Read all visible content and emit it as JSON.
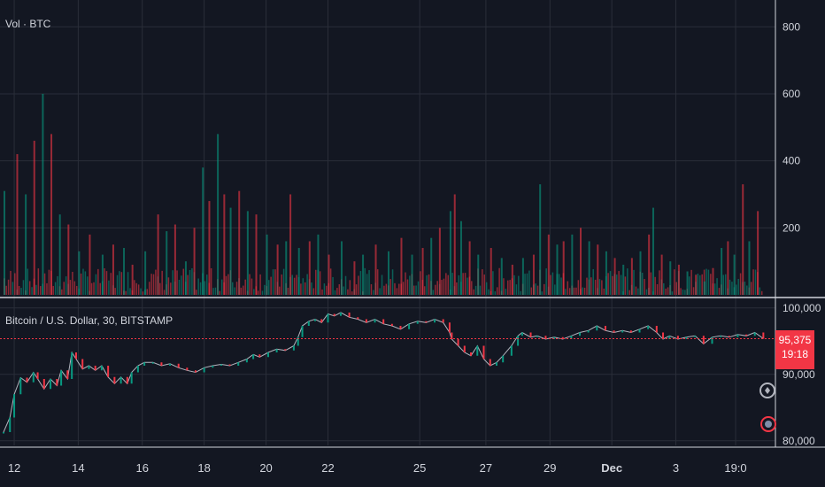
{
  "volume_legend": "Vol · BTC",
  "price_legend": "Bitcoin / U.S. Dollar, 30, BITSTAMP",
  "last_price": "95,375",
  "countdown": "19:18",
  "colors": {
    "background": "#131722",
    "grid": "#2a2e39",
    "up": "#089981",
    "down": "#f23645",
    "line": "#b2b5be",
    "text": "#d1d4dc"
  },
  "icons": [
    "add-alert-icon",
    "flag-icon"
  ],
  "chart_data": [
    {
      "type": "bar",
      "title": "Vol · BTC",
      "y_ticks": [
        200,
        400,
        600,
        800
      ],
      "ylim": [
        0,
        880
      ],
      "grid": true,
      "spikes": [
        {
          "x": 0.0,
          "v": 310
        },
        {
          "x": 0.6,
          "v": 420
        },
        {
          "x": 1.0,
          "v": 300
        },
        {
          "x": 1.4,
          "v": 460
        },
        {
          "x": 1.8,
          "v": 600
        },
        {
          "x": 2.2,
          "v": 480
        },
        {
          "x": 2.6,
          "v": 240
        },
        {
          "x": 3.0,
          "v": 210
        },
        {
          "x": 3.5,
          "v": 130
        },
        {
          "x": 4.0,
          "v": 180
        },
        {
          "x": 4.6,
          "v": 120
        },
        {
          "x": 5.1,
          "v": 150
        },
        {
          "x": 5.6,
          "v": 140
        },
        {
          "x": 6.0,
          "v": 90
        },
        {
          "x": 6.6,
          "v": 130
        },
        {
          "x": 7.2,
          "v": 240
        },
        {
          "x": 7.6,
          "v": 190
        },
        {
          "x": 8.0,
          "v": 210
        },
        {
          "x": 8.5,
          "v": 100
        },
        {
          "x": 8.9,
          "v": 200
        },
        {
          "x": 9.3,
          "v": 380
        },
        {
          "x": 9.6,
          "v": 280
        },
        {
          "x": 10.0,
          "v": 480
        },
        {
          "x": 10.3,
          "v": 300
        },
        {
          "x": 10.6,
          "v": 260
        },
        {
          "x": 11.0,
          "v": 310
        },
        {
          "x": 11.4,
          "v": 250
        },
        {
          "x": 11.8,
          "v": 240
        },
        {
          "x": 12.3,
          "v": 180
        },
        {
          "x": 12.8,
          "v": 150
        },
        {
          "x": 13.2,
          "v": 160
        },
        {
          "x": 13.4,
          "v": 300
        },
        {
          "x": 13.8,
          "v": 140
        },
        {
          "x": 14.3,
          "v": 160
        },
        {
          "x": 14.7,
          "v": 180
        },
        {
          "x": 15.2,
          "v": 120
        },
        {
          "x": 15.8,
          "v": 160
        },
        {
          "x": 16.4,
          "v": 100
        },
        {
          "x": 16.8,
          "v": 120
        },
        {
          "x": 17.4,
          "v": 150
        },
        {
          "x": 18.0,
          "v": 130
        },
        {
          "x": 18.6,
          "v": 170
        },
        {
          "x": 19.1,
          "v": 120
        },
        {
          "x": 19.6,
          "v": 140
        },
        {
          "x": 20.0,
          "v": 170
        },
        {
          "x": 20.4,
          "v": 200
        },
        {
          "x": 20.9,
          "v": 250
        },
        {
          "x": 21.1,
          "v": 300
        },
        {
          "x": 21.4,
          "v": 220
        },
        {
          "x": 21.8,
          "v": 160
        },
        {
          "x": 22.2,
          "v": 120
        },
        {
          "x": 22.8,
          "v": 140
        },
        {
          "x": 23.3,
          "v": 110
        },
        {
          "x": 23.8,
          "v": 90
        },
        {
          "x": 24.3,
          "v": 110
        },
        {
          "x": 24.8,
          "v": 120
        },
        {
          "x": 25.1,
          "v": 330
        },
        {
          "x": 25.5,
          "v": 180
        },
        {
          "x": 25.9,
          "v": 150
        },
        {
          "x": 26.2,
          "v": 160
        },
        {
          "x": 26.6,
          "v": 180
        },
        {
          "x": 27.0,
          "v": 200
        },
        {
          "x": 27.4,
          "v": 160
        },
        {
          "x": 27.8,
          "v": 150
        },
        {
          "x": 28.2,
          "v": 130
        },
        {
          "x": 28.6,
          "v": 110
        },
        {
          "x": 29.0,
          "v": 90
        },
        {
          "x": 29.4,
          "v": 110
        },
        {
          "x": 29.8,
          "v": 130
        },
        {
          "x": 30.2,
          "v": 180
        },
        {
          "x": 30.4,
          "v": 260
        },
        {
          "x": 30.8,
          "v": 120
        },
        {
          "x": 31.2,
          "v": 100
        },
        {
          "x": 31.6,
          "v": 90
        },
        {
          "x": 32.0,
          "v": 70
        },
        {
          "x": 32.4,
          "v": 60
        },
        {
          "x": 32.8,
          "v": 40
        },
        {
          "x": 33.2,
          "v": 80
        },
        {
          "x": 33.6,
          "v": 140
        },
        {
          "x": 33.9,
          "v": 160
        },
        {
          "x": 34.2,
          "v": 120
        },
        {
          "x": 34.6,
          "v": 330
        },
        {
          "x": 34.9,
          "v": 160
        },
        {
          "x": 35.3,
          "v": 250
        }
      ]
    },
    {
      "type": "line",
      "title": "Bitcoin / U.S. Dollar, 30, BITSTAMP",
      "x_ticks": [
        "12",
        "14",
        "16",
        "18",
        "20",
        "22",
        "25",
        "27",
        "29",
        "Dec",
        "3",
        "19:0"
      ],
      "y_ticks": [
        80000,
        90000,
        95375,
        100000
      ],
      "ylim": [
        79300,
        101300
      ],
      "grid": true,
      "last": 95375,
      "points": [
        {
          "x": 0.0,
          "y": 81300
        },
        {
          "x": 0.3,
          "y": 83500
        },
        {
          "x": 0.5,
          "y": 87000
        },
        {
          "x": 0.8,
          "y": 89500
        },
        {
          "x": 1.1,
          "y": 88800
        },
        {
          "x": 1.4,
          "y": 90300
        },
        {
          "x": 1.6,
          "y": 89300
        },
        {
          "x": 1.9,
          "y": 87800
        },
        {
          "x": 2.2,
          "y": 89300
        },
        {
          "x": 2.5,
          "y": 88300
        },
        {
          "x": 2.7,
          "y": 90600
        },
        {
          "x": 3.0,
          "y": 89300
        },
        {
          "x": 3.2,
          "y": 93300
        },
        {
          "x": 3.4,
          "y": 92300
        },
        {
          "x": 3.7,
          "y": 90800
        },
        {
          "x": 4.0,
          "y": 91300
        },
        {
          "x": 4.3,
          "y": 90600
        },
        {
          "x": 4.6,
          "y": 91300
        },
        {
          "x": 4.9,
          "y": 89600
        },
        {
          "x": 5.2,
          "y": 88600
        },
        {
          "x": 5.5,
          "y": 89600
        },
        {
          "x": 5.8,
          "y": 88600
        },
        {
          "x": 6.0,
          "y": 90300
        },
        {
          "x": 6.3,
          "y": 91300
        },
        {
          "x": 6.6,
          "y": 91800
        },
        {
          "x": 7.0,
          "y": 91800
        },
        {
          "x": 7.4,
          "y": 91300
        },
        {
          "x": 7.8,
          "y": 91600
        },
        {
          "x": 8.2,
          "y": 91000
        },
        {
          "x": 8.6,
          "y": 90600
        },
        {
          "x": 9.0,
          "y": 90300
        },
        {
          "x": 9.4,
          "y": 91000
        },
        {
          "x": 9.8,
          "y": 91300
        },
        {
          "x": 10.2,
          "y": 91500
        },
        {
          "x": 10.6,
          "y": 91300
        },
        {
          "x": 11.0,
          "y": 91800
        },
        {
          "x": 11.4,
          "y": 92300
        },
        {
          "x": 11.7,
          "y": 93000
        },
        {
          "x": 12.0,
          "y": 92600
        },
        {
          "x": 12.4,
          "y": 93300
        },
        {
          "x": 12.8,
          "y": 93800
        },
        {
          "x": 13.2,
          "y": 93600
        },
        {
          "x": 13.6,
          "y": 94300
        },
        {
          "x": 13.8,
          "y": 95600
        },
        {
          "x": 14.0,
          "y": 97300
        },
        {
          "x": 14.3,
          "y": 98000
        },
        {
          "x": 14.6,
          "y": 98300
        },
        {
          "x": 14.9,
          "y": 97800
        },
        {
          "x": 15.2,
          "y": 99100
        },
        {
          "x": 15.5,
          "y": 98800
        },
        {
          "x": 15.8,
          "y": 99300
        },
        {
          "x": 16.2,
          "y": 98600
        },
        {
          "x": 16.6,
          "y": 98300
        },
        {
          "x": 17.0,
          "y": 97800
        },
        {
          "x": 17.4,
          "y": 98300
        },
        {
          "x": 17.8,
          "y": 97600
        },
        {
          "x": 18.2,
          "y": 97300
        },
        {
          "x": 18.6,
          "y": 96800
        },
        {
          "x": 19.0,
          "y": 97600
        },
        {
          "x": 19.4,
          "y": 98000
        },
        {
          "x": 19.8,
          "y": 97800
        },
        {
          "x": 20.2,
          "y": 98300
        },
        {
          "x": 20.6,
          "y": 97800
        },
        {
          "x": 20.9,
          "y": 96300
        },
        {
          "x": 21.0,
          "y": 95300
        },
        {
          "x": 21.3,
          "y": 94300
        },
        {
          "x": 21.6,
          "y": 93300
        },
        {
          "x": 21.9,
          "y": 92800
        },
        {
          "x": 22.2,
          "y": 94300
        },
        {
          "x": 22.5,
          "y": 92300
        },
        {
          "x": 22.8,
          "y": 91300
        },
        {
          "x": 23.1,
          "y": 91800
        },
        {
          "x": 23.4,
          "y": 92800
        },
        {
          "x": 23.8,
          "y": 94300
        },
        {
          "x": 24.1,
          "y": 95800
        },
        {
          "x": 24.3,
          "y": 96300
        },
        {
          "x": 24.7,
          "y": 95600
        },
        {
          "x": 25.0,
          "y": 95800
        },
        {
          "x": 25.4,
          "y": 95300
        },
        {
          "x": 25.8,
          "y": 95600
        },
        {
          "x": 26.2,
          "y": 95300
        },
        {
          "x": 26.6,
          "y": 95800
        },
        {
          "x": 27.0,
          "y": 96300
        },
        {
          "x": 27.4,
          "y": 96600
        },
        {
          "x": 27.8,
          "y": 97300
        },
        {
          "x": 28.2,
          "y": 96600
        },
        {
          "x": 28.6,
          "y": 96300
        },
        {
          "x": 29.0,
          "y": 96600
        },
        {
          "x": 29.4,
          "y": 96300
        },
        {
          "x": 29.8,
          "y": 96800
        },
        {
          "x": 30.2,
          "y": 97300
        },
        {
          "x": 30.6,
          "y": 96300
        },
        {
          "x": 30.9,
          "y": 95300
        },
        {
          "x": 31.2,
          "y": 95800
        },
        {
          "x": 31.6,
          "y": 95300
        },
        {
          "x": 32.0,
          "y": 95600
        },
        {
          "x": 32.4,
          "y": 95800
        },
        {
          "x": 32.8,
          "y": 94600
        },
        {
          "x": 33.2,
          "y": 95600
        },
        {
          "x": 33.6,
          "y": 95800
        },
        {
          "x": 34.0,
          "y": 95600
        },
        {
          "x": 34.4,
          "y": 96000
        },
        {
          "x": 34.8,
          "y": 95800
        },
        {
          "x": 35.2,
          "y": 96300
        },
        {
          "x": 35.6,
          "y": 95375
        }
      ]
    }
  ]
}
